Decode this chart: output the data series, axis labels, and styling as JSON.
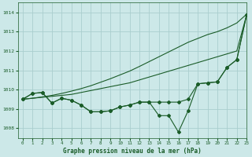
{
  "title": "Graphe pression niveau de la mer (hPa)",
  "bg_color": "#cce8e8",
  "grid_color": "#aacece",
  "line_color": "#1a5c28",
  "xlim": [
    -0.5,
    23
  ],
  "ylim": [
    1007.5,
    1014.5
  ],
  "yticks": [
    1008,
    1009,
    1010,
    1011,
    1012,
    1013,
    1014
  ],
  "xticks": [
    0,
    1,
    2,
    3,
    4,
    5,
    6,
    7,
    8,
    9,
    10,
    11,
    12,
    13,
    14,
    15,
    16,
    17,
    18,
    19,
    20,
    21,
    22,
    23
  ],
  "series_smooth1": [
    1009.5,
    1009.55,
    1009.6,
    1009.65,
    1009.7,
    1009.75,
    1009.85,
    1009.95,
    1010.05,
    1010.15,
    1010.25,
    1010.35,
    1010.5,
    1010.65,
    1010.8,
    1010.95,
    1011.1,
    1011.25,
    1011.4,
    1011.55,
    1011.7,
    1011.85,
    1012.0,
    1013.85
  ],
  "series_smooth2": [
    1009.5,
    1009.55,
    1009.62,
    1009.7,
    1009.8,
    1009.92,
    1010.05,
    1010.2,
    1010.38,
    1010.56,
    1010.76,
    1010.96,
    1011.2,
    1011.45,
    1011.7,
    1011.95,
    1012.2,
    1012.45,
    1012.65,
    1012.85,
    1013.0,
    1013.2,
    1013.45,
    1013.9
  ],
  "series_jagged1": [
    1009.5,
    1009.8,
    1009.85,
    1009.3,
    1009.55,
    1009.45,
    1009.2,
    1008.85,
    1008.85,
    1008.9,
    1009.1,
    1009.2,
    1009.35,
    1009.35,
    1009.35,
    1009.35,
    1009.35,
    1009.5,
    1010.3,
    1010.35,
    1010.4,
    1011.15,
    1011.55,
    1013.85
  ],
  "series_jagged2": [
    1009.5,
    1009.8,
    1009.85,
    1009.3,
    1009.55,
    1009.45,
    1009.2,
    1008.85,
    1008.85,
    1008.9,
    1009.1,
    1009.2,
    1009.35,
    1009.35,
    1008.65,
    1008.65,
    1007.8,
    1008.9,
    1010.3,
    1010.35,
    1010.4,
    1011.15,
    1011.55,
    1013.85
  ]
}
